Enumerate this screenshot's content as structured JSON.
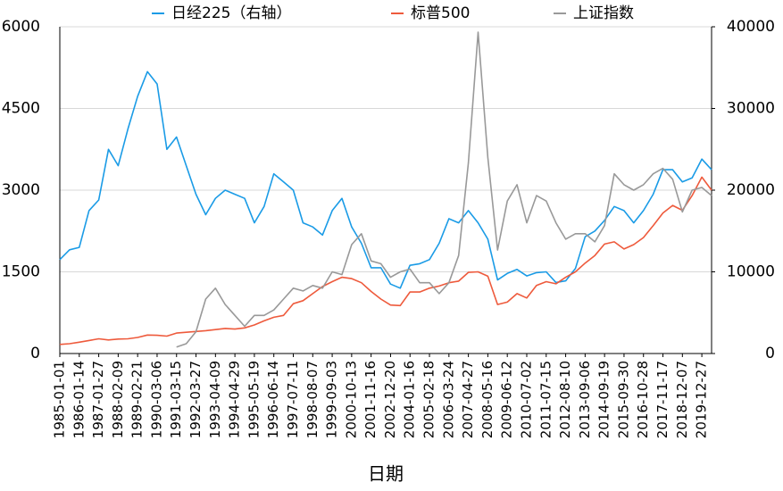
{
  "chart_data": {
    "type": "line",
    "x_label": "日期",
    "categories": [
      "1985-01-01",
      null,
      "1986-01-14",
      null,
      "1987-01-27",
      null,
      "1988-02-09",
      null,
      "1989-02-21",
      null,
      "1990-03-06",
      null,
      "1991-03-15",
      null,
      "1992-03-27",
      null,
      "1993-04-09",
      null,
      "1994-04-29",
      null,
      "1995-05-19",
      null,
      "1996-06-14",
      null,
      "1997-07-11",
      null,
      "1998-08-07",
      null,
      "1999-09-03",
      null,
      "2000-10-13",
      null,
      "2001-11-16",
      null,
      "2002-12-20",
      null,
      "2004-01-16",
      null,
      "2005-02-18",
      null,
      "2006-03-24",
      null,
      "2007-04-27",
      null,
      "2008-05-16",
      null,
      "2009-06-12",
      null,
      "2010-07-02",
      null,
      "2011-07-15",
      null,
      "2012-08-10",
      null,
      "2013-09-06",
      null,
      "2014-09-19",
      null,
      "2015-09-30",
      null,
      "2016-10-28",
      null,
      "2017-11-17",
      null,
      "2018-12-07",
      null,
      "2019-12-27",
      null
    ],
    "series": [
      {
        "name": "日经225（右轴）",
        "color": "#1a9be6",
        "axis": "y2",
        "values": [
          11500,
          12700,
          13000,
          17500,
          18800,
          25000,
          23000,
          27500,
          31500,
          34500,
          33000,
          25000,
          26500,
          23000,
          19500,
          17000,
          19000,
          20000,
          19500,
          19000,
          16000,
          18000,
          22000,
          21000,
          20000,
          16000,
          15500,
          14500,
          17500,
          19000,
          15500,
          13500,
          10500,
          10500,
          8500,
          8000,
          10800,
          11000,
          11500,
          13500,
          16500,
          16000,
          17500,
          16000,
          14000,
          9000,
          9800,
          10300,
          9500,
          9900,
          10000,
          8700,
          8900,
          10400,
          14300,
          15000,
          16300,
          18000,
          17500,
          16000,
          17500,
          19500,
          22500,
          22500,
          21000,
          21500,
          23800,
          22500
        ]
      },
      {
        "name": "标普500",
        "color": "#ee5a3c",
        "values": [
          167,
          180,
          208,
          240,
          270,
          250,
          265,
          270,
          295,
          340,
          335,
          320,
          375,
          390,
          405,
          420,
          440,
          460,
          450,
          470,
          525,
          600,
          665,
          700,
          915,
          970,
          1100,
          1230,
          1320,
          1400,
          1375,
          1300,
          1140,
          1000,
          890,
          880,
          1130,
          1130,
          1200,
          1240,
          1300,
          1330,
          1490,
          1500,
          1420,
          900,
          945,
          1100,
          1020,
          1250,
          1320,
          1280,
          1400,
          1500,
          1660,
          1800,
          2010,
          2050,
          1920,
          2000,
          2130,
          2350,
          2580,
          2720,
          2630,
          2900,
          3240,
          3000
        ]
      },
      {
        "name": "上证指数",
        "color": "#999999",
        "values": [
          null,
          null,
          null,
          null,
          null,
          null,
          null,
          null,
          null,
          null,
          null,
          null,
          120,
          180,
          400,
          1000,
          1200,
          900,
          700,
          500,
          700,
          700,
          800,
          1000,
          1200,
          1150,
          1250,
          1200,
          1500,
          1450,
          2000,
          2200,
          1700,
          1650,
          1400,
          1500,
          1550,
          1300,
          1300,
          1100,
          1300,
          1800,
          3500,
          5900,
          3600,
          1900,
          2800,
          3100,
          2400,
          2900,
          2800,
          2400,
          2100,
          2200,
          2200,
          2050,
          2350,
          3300,
          3100,
          3000,
          3100,
          3300,
          3400,
          3200,
          2600,
          3000,
          3050,
          2900
        ]
      }
    ],
    "ylim": [
      0,
      6000
    ],
    "yticks": [
      0,
      1500,
      3000,
      4500,
      6000
    ],
    "y2lim": [
      0,
      40000
    ],
    "y2ticks": [
      0,
      10000,
      20000,
      30000,
      40000
    ],
    "grid": true,
    "legend": "top"
  }
}
